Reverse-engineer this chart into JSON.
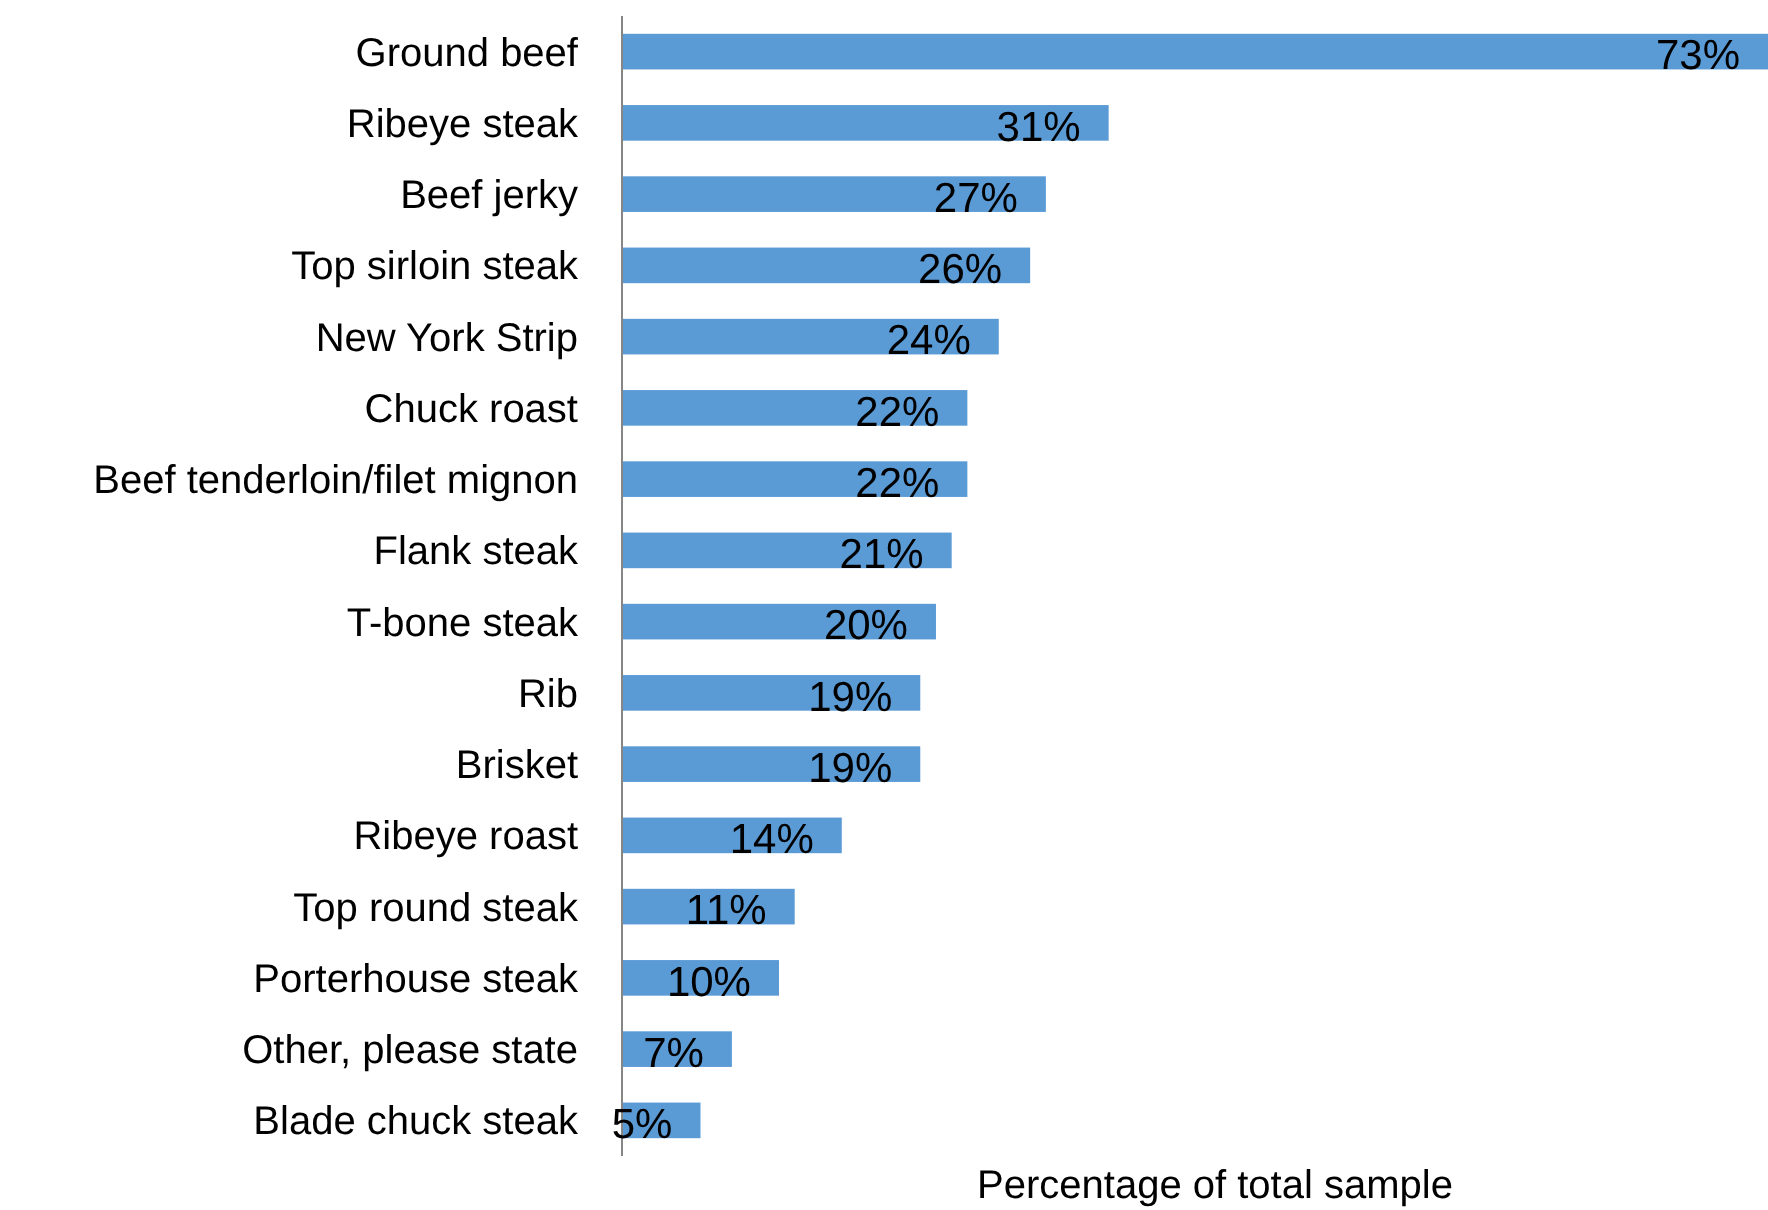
{
  "chart_data": {
    "type": "bar",
    "orientation": "horizontal",
    "categories": [
      "Ground beef",
      "Ribeye steak",
      "Beef jerky",
      "Top sirloin steak",
      "New York Strip",
      "Chuck roast",
      "Beef tenderloin/filet mignon",
      "Flank steak",
      "T-bone steak",
      "Rib",
      "Brisket",
      "Ribeye roast",
      "Top round steak",
      "Porterhouse steak",
      "Other, please state",
      "Blade chuck steak"
    ],
    "values": [
      73,
      31,
      27,
      26,
      24,
      22,
      22,
      21,
      20,
      19,
      19,
      14,
      11,
      10,
      7,
      5
    ],
    "value_labels": [
      "73%",
      "31%",
      "27%",
      "26%",
      "24%",
      "22%",
      "22%",
      "21%",
      "20%",
      "19%",
      "19%",
      "14%",
      "11%",
      "10%",
      "7%",
      "5%"
    ],
    "color": "#5b9bd5",
    "xlabel": "Percentage of total sample",
    "tick_labels": "y"
  }
}
